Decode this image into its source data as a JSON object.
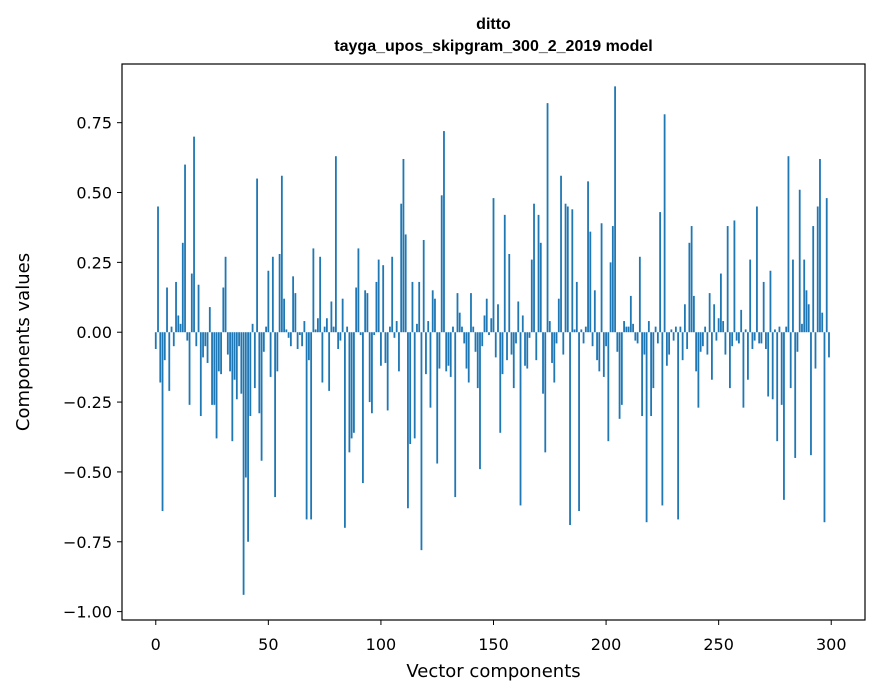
{
  "chart_data": {
    "type": "bar",
    "title": "ditto",
    "subtitle": "tayga_upos_skipgram_300_2_2019 model",
    "xlabel": "Vector components",
    "ylabel": "Components values",
    "xlim": [
      -15,
      315
    ],
    "ylim": [
      -1.03,
      0.96
    ],
    "xticks": [
      0,
      50,
      100,
      150,
      200,
      250,
      300
    ],
    "xtick_labels": [
      "0",
      "50",
      "100",
      "150",
      "200",
      "250",
      "300"
    ],
    "yticks": [
      -1.0,
      -0.75,
      -0.5,
      -0.25,
      0.0,
      0.25,
      0.5,
      0.75
    ],
    "ytick_labels": [
      "−1.00",
      "−0.75",
      "−0.50",
      "−0.25",
      "0.00",
      "0.25",
      "0.50",
      "0.75"
    ],
    "grid": false,
    "bar_color": "#1f77b4",
    "x": [
      0,
      1,
      2,
      3,
      4,
      5,
      6,
      7,
      8,
      9,
      10,
      11,
      12,
      13,
      14,
      15,
      16,
      17,
      18,
      19,
      20,
      21,
      22,
      23,
      24,
      25,
      26,
      27,
      28,
      29,
      30,
      31,
      32,
      33,
      34,
      35,
      36,
      37,
      38,
      39,
      40,
      41,
      42,
      43,
      44,
      45,
      46,
      47,
      48,
      49,
      50,
      51,
      52,
      53,
      54,
      55,
      56,
      57,
      58,
      59,
      60,
      61,
      62,
      63,
      64,
      65,
      66,
      67,
      68,
      69,
      70,
      71,
      72,
      73,
      74,
      75,
      76,
      77,
      78,
      79,
      80,
      81,
      82,
      83,
      84,
      85,
      86,
      87,
      88,
      89,
      90,
      91,
      92,
      93,
      94,
      95,
      96,
      97,
      98,
      99,
      100,
      101,
      102,
      103,
      104,
      105,
      106,
      107,
      108,
      109,
      110,
      111,
      112,
      113,
      114,
      115,
      116,
      117,
      118,
      119,
      120,
      121,
      122,
      123,
      124,
      125,
      126,
      127,
      128,
      129,
      130,
      131,
      132,
      133,
      134,
      135,
      136,
      137,
      138,
      139,
      140,
      141,
      142,
      143,
      144,
      145,
      146,
      147,
      148,
      149,
      150,
      151,
      152,
      153,
      154,
      155,
      156,
      157,
      158,
      159,
      160,
      161,
      162,
      163,
      164,
      165,
      166,
      167,
      168,
      169,
      170,
      171,
      172,
      173,
      174,
      175,
      176,
      177,
      178,
      179,
      180,
      181,
      182,
      183,
      184,
      185,
      186,
      187,
      188,
      189,
      190,
      191,
      192,
      193,
      194,
      195,
      196,
      197,
      198,
      199,
      200,
      201,
      202,
      203,
      204,
      205,
      206,
      207,
      208,
      209,
      210,
      211,
      212,
      213,
      214,
      215,
      216,
      217,
      218,
      219,
      220,
      221,
      222,
      223,
      224,
      225,
      226,
      227,
      228,
      229,
      230,
      231,
      232,
      233,
      234,
      235,
      236,
      237,
      238,
      239,
      240,
      241,
      242,
      243,
      244,
      245,
      246,
      247,
      248,
      249,
      250,
      251,
      252,
      253,
      254,
      255,
      256,
      257,
      258,
      259,
      260,
      261,
      262,
      263,
      264,
      265,
      266,
      267,
      268,
      269,
      270,
      271,
      272,
      273,
      274,
      275,
      276,
      277,
      278,
      279,
      280,
      281,
      282,
      283,
      284,
      285,
      286,
      287,
      288,
      289,
      290,
      291,
      292,
      293,
      294,
      295,
      296,
      297,
      298,
      299
    ],
    "values": [
      -0.06,
      0.45,
      -0.18,
      -0.64,
      -0.1,
      0.16,
      -0.21,
      0.02,
      -0.05,
      0.18,
      0.06,
      0.03,
      0.32,
      0.6,
      -0.03,
      -0.26,
      0.21,
      0.7,
      -0.05,
      0.17,
      -0.3,
      -0.09,
      -0.05,
      -0.11,
      0.09,
      -0.26,
      -0.26,
      -0.38,
      -0.14,
      -0.15,
      0.16,
      0.27,
      -0.08,
      -0.14,
      -0.39,
      -0.17,
      -0.24,
      -0.05,
      -0.22,
      -0.94,
      -0.52,
      -0.75,
      -0.3,
      0.03,
      -0.2,
      0.55,
      -0.29,
      -0.46,
      -0.07,
      0.02,
      0.22,
      -0.16,
      0.27,
      -0.59,
      -0.14,
      0.28,
      0.56,
      0.12,
      0.01,
      -0.02,
      -0.05,
      0.2,
      0.14,
      -0.06,
      -0.01,
      -0.05,
      0.04,
      -0.67,
      -0.1,
      -0.67,
      0.3,
      0.01,
      0.05,
      0.27,
      -0.18,
      0.02,
      0.05,
      -0.21,
      0.11,
      0.02,
      0.63,
      -0.06,
      -0.03,
      0.12,
      -0.7,
      0.02,
      -0.43,
      -0.38,
      -0.36,
      0.16,
      0.3,
      -0.01,
      -0.54,
      0.15,
      0.14,
      -0.25,
      -0.29,
      -0.01,
      0.18,
      0.26,
      -0.12,
      0.24,
      -0.11,
      -0.28,
      0.02,
      0.27,
      -0.02,
      0.04,
      -0.14,
      0.46,
      0.62,
      0.35,
      -0.63,
      -0.4,
      0.18,
      -0.38,
      0.03,
      0.18,
      -0.78,
      0.33,
      -0.15,
      0.04,
      -0.27,
      0.15,
      0.12,
      -0.47,
      -0.13,
      0.49,
      0.72,
      -0.14,
      -0.12,
      -0.16,
      0.02,
      -0.59,
      0.14,
      0.07,
      0.02,
      -0.04,
      -0.13,
      -0.18,
      0.14,
      0.02,
      -0.07,
      -0.2,
      -0.49,
      -0.05,
      0.06,
      0.12,
      -0.01,
      0.05,
      0.48,
      -0.09,
      0.1,
      -0.36,
      -0.15,
      0.42,
      -0.1,
      0.28,
      -0.08,
      -0.2,
      -0.04,
      0.11,
      -0.62,
      0.06,
      -0.12,
      -0.13,
      -0.02,
      0.26,
      0.46,
      -0.1,
      0.42,
      0.32,
      -0.22,
      -0.43,
      0.82,
      0.04,
      -0.11,
      -0.18,
      -0.04,
      0.12,
      0.56,
      -0.08,
      0.46,
      0.45,
      -0.69,
      0.44,
      0.01,
      0.18,
      -0.64,
      0.01,
      -0.04,
      0.02,
      0.54,
      0.36,
      -0.05,
      0.15,
      -0.1,
      -0.14,
      0.39,
      -0.16,
      -0.05,
      -0.39,
      0.25,
      0.38,
      0.88,
      -0.07,
      -0.31,
      -0.26,
      0.04,
      0.02,
      0.02,
      0.13,
      0.03,
      -0.03,
      -0.04,
      0.27,
      -0.3,
      -0.08,
      -0.68,
      0.04,
      -0.3,
      -0.2,
      0.02,
      -0.04,
      0.43,
      -0.62,
      0.78,
      -0.12,
      -0.08,
      0.01,
      -0.03,
      0.02,
      -0.67,
      0.02,
      -0.1,
      0.1,
      -0.06,
      0.32,
      0.38,
      0.13,
      -0.14,
      -0.27,
      -0.07,
      -0.05,
      0.02,
      -0.08,
      0.14,
      -0.17,
      0.1,
      -0.03,
      0.05,
      0.21,
      0.04,
      -0.08,
      0.38,
      -0.2,
      -0.05,
      0.4,
      -0.03,
      -0.04,
      0.08,
      -0.27,
      0.01,
      -0.17,
      0.26,
      -0.06,
      -0.03,
      0.45,
      -0.04,
      -0.04,
      0.18,
      -0.06,
      -0.23,
      0.22,
      -0.24,
      0.01,
      -0.39,
      0.02,
      -0.26,
      -0.6,
      0.02,
      0.63,
      -0.2,
      0.26,
      -0.45,
      -0.07,
      0.51,
      0.03,
      0.26,
      0.15,
      0.1,
      -0.44,
      0.38,
      -0.13,
      0.45,
      0.62,
      0.07,
      -0.68,
      0.48,
      -0.09
    ]
  }
}
